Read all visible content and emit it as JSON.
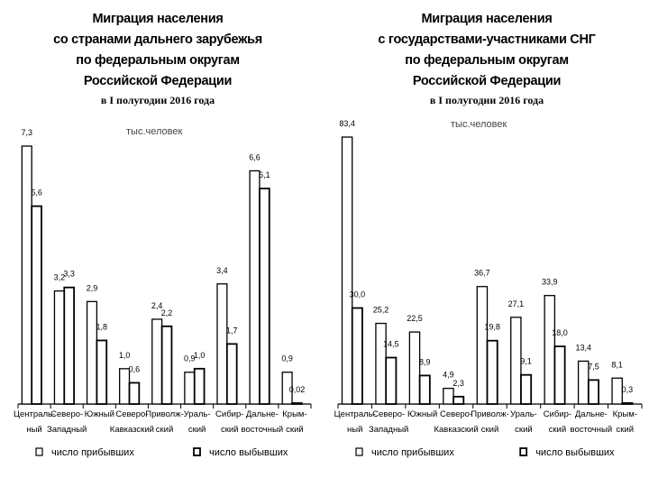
{
  "chart_data": [
    {
      "type": "bar",
      "title_lines": [
        "Миграция населения",
        "со странами дальнего зарубежья",
        "по федеральным округам",
        "Российской Федерации"
      ],
      "subtitle": "в I полугодии 2016 года",
      "unit": "тыс.человек",
      "categories": [
        [
          "Централь-",
          "ный"
        ],
        [
          "Северо-",
          "Западный"
        ],
        [
          "Южный",
          ""
        ],
        [
          "Северо-",
          "Кавказский"
        ],
        [
          "Приволж-",
          "ский"
        ],
        [
          "Ураль-",
          "ский"
        ],
        [
          "Сибир-",
          "ский"
        ],
        [
          "Дальне-",
          "восточный"
        ],
        [
          "Крым-",
          "ский"
        ]
      ],
      "series": [
        {
          "name": "число прибывших",
          "values": [
            7.3,
            3.2,
            2.9,
            1.0,
            2.4,
            0.9,
            3.4,
            6.6,
            0.9
          ],
          "labels": [
            "7,3",
            "3,2",
            "2,9",
            "1,0",
            "2,4",
            "0,9",
            "3,4",
            "6,6",
            "0,9"
          ]
        },
        {
          "name": "число выбывших",
          "values": [
            5.6,
            3.3,
            1.8,
            0.6,
            2.2,
            1.0,
            1.7,
            6.1,
            0.02
          ],
          "labels": [
            "5,6",
            "3,3",
            "1,8",
            "0,6",
            "2,2",
            "1,0",
            "1,7",
            "6,1",
            "0,02"
          ]
        }
      ],
      "ylim": [
        0,
        7.3
      ],
      "legend_position": "bottom",
      "grid": false
    },
    {
      "type": "bar",
      "title_lines": [
        "Миграция населения",
        "с государствами-участниками СНГ",
        "по федеральным округам",
        "Российской Федерации"
      ],
      "subtitle": "в I полугодии 2016 года",
      "unit": "тыс.человек",
      "categories": [
        [
          "Централь-",
          "ный"
        ],
        [
          "Северо-",
          "Западный"
        ],
        [
          "Южный",
          ""
        ],
        [
          "Северо-",
          "Кавказский"
        ],
        [
          "Приволж-",
          "ский"
        ],
        [
          "Ураль-",
          "ский"
        ],
        [
          "Сибир-",
          "ский"
        ],
        [
          "Дальне-",
          "восточный"
        ],
        [
          "Крым-",
          "ский"
        ]
      ],
      "series": [
        {
          "name": "число прибывших",
          "values": [
            83.4,
            25.2,
            22.5,
            4.9,
            36.7,
            27.1,
            33.9,
            13.4,
            8.1
          ],
          "labels": [
            "83,4",
            "25,2",
            "22,5",
            "4,9",
            "36,7",
            "27,1",
            "33,9",
            "13,4",
            "8,1"
          ]
        },
        {
          "name": "число выбывших",
          "values": [
            30.0,
            14.5,
            8.9,
            2.3,
            19.8,
            9.1,
            18.0,
            7.5,
            0.3
          ],
          "labels": [
            "30,0",
            "14,5",
            "8,9",
            "2,3",
            "19,8",
            "9,1",
            "18,0",
            "7,5",
            "0,3"
          ]
        }
      ],
      "ylim": [
        0,
        83.4
      ],
      "legend_position": "bottom",
      "grid": false
    }
  ]
}
